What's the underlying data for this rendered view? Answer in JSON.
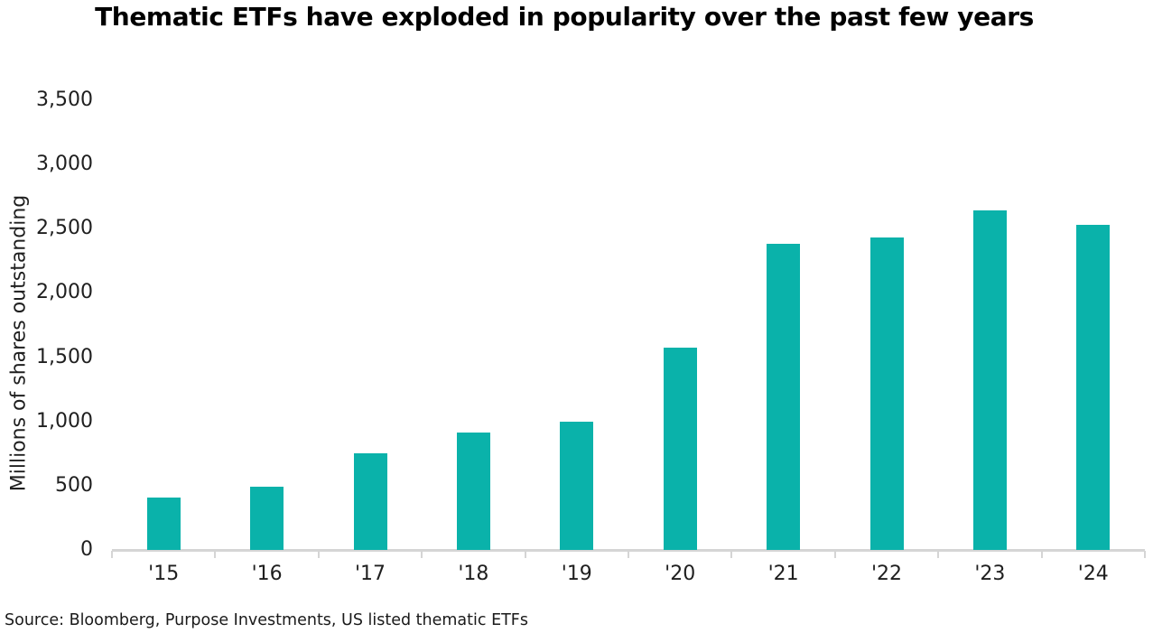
{
  "colors": {
    "bar": "#0ab2aa",
    "axis": "#d5d5d5",
    "text": "#1f1f1f",
    "title": "#000000"
  },
  "chart_data": {
    "type": "bar",
    "title": "Thematic ETFs have exploded in popularity over the past few years",
    "categories": [
      "'15",
      "'16",
      "'17",
      "'18",
      "'19",
      "'20",
      "'21",
      "'22",
      "'23",
      "'24"
    ],
    "values": [
      405,
      490,
      750,
      915,
      1000,
      1575,
      2380,
      2430,
      2640,
      2530
    ],
    "xlabel": "",
    "ylabel": "Millions of shares outstanding",
    "ylim": [
      0,
      3500
    ],
    "ytick_step": 500,
    "ytick_labels": [
      "0",
      "500",
      "1,000",
      "1,500",
      "2,000",
      "2,500",
      "3,000",
      "3,500"
    ],
    "grid": false,
    "legend": false,
    "bar_color": "#0ab2aa",
    "source": "Source: Bloomberg, Purpose Investments, US listed thematic ETFs"
  }
}
